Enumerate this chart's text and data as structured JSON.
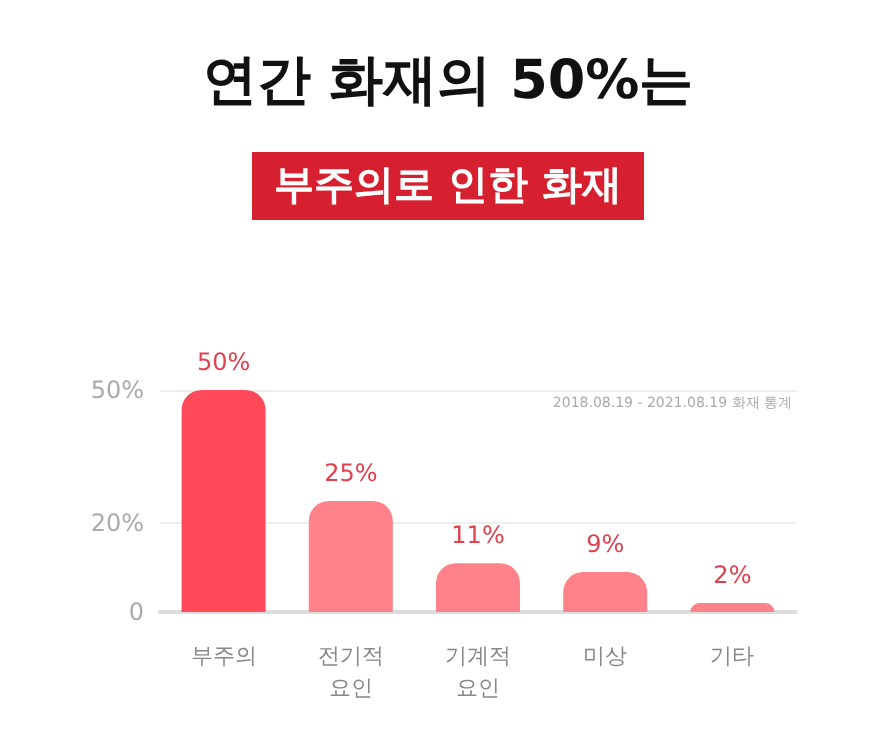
{
  "chart_data": {
    "type": "bar",
    "title": "연간 화재의 50%는",
    "subtitle": "부주의로 인한 화재",
    "categories": [
      "부주의",
      "전기적\n요인",
      "기계적\n요인",
      "미상",
      "기타"
    ],
    "values": [
      50,
      25,
      11,
      9,
      2
    ],
    "colors": [
      "#ff4a5a",
      "#ff8189",
      "#ff8189",
      "#ff8189",
      "#ff8189"
    ],
    "ylim": [
      0,
      50
    ],
    "yticks": [
      {
        "value": 0,
        "label": "0"
      },
      {
        "value": 20,
        "label": "20%"
      },
      {
        "value": 50,
        "label": "50%"
      }
    ],
    "grid": "y",
    "value_labels": [
      "50%",
      "25%",
      "11%",
      "9%",
      "2%"
    ],
    "annotations": [
      "2018.08.19 - 2021.08.19 화재 통계"
    ]
  }
}
